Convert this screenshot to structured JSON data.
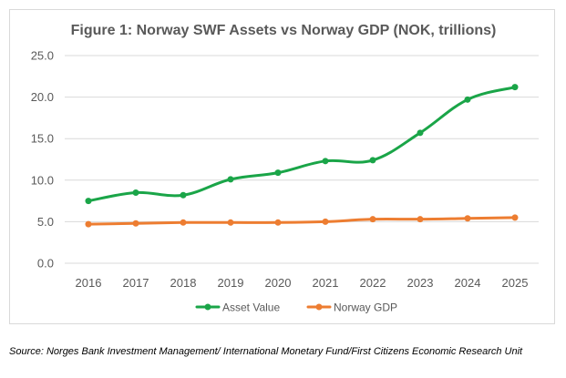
{
  "chart_data": {
    "type": "line",
    "title": "Figure 1: Norway SWF Assets vs Norway GDP (NOK, trillions)",
    "x": [
      "2016",
      "2017",
      "2018",
      "2019",
      "2020",
      "2021",
      "2022",
      "2023",
      "2024",
      "2025"
    ],
    "series": [
      {
        "name": "Asset Value",
        "color": "#1aa548",
        "values": [
          7.5,
          8.5,
          8.2,
          10.1,
          10.9,
          12.3,
          12.4,
          15.7,
          19.7,
          21.2
        ]
      },
      {
        "name": "Norway GDP",
        "color": "#ed7d31",
        "values": [
          4.7,
          4.8,
          4.9,
          4.9,
          4.9,
          5.0,
          5.3,
          5.3,
          5.4,
          5.5
        ]
      }
    ],
    "ylim": [
      0,
      25
    ],
    "yticks": [
      "0.0",
      "5.0",
      "10.0",
      "15.0",
      "20.0",
      "25.0"
    ],
    "xlabel": "",
    "ylabel": "",
    "grid": true,
    "legend": "bottom"
  },
  "source": "Source: Norges Bank Investment Management/ International Monetary Fund/First Citizens Economic Research Unit"
}
